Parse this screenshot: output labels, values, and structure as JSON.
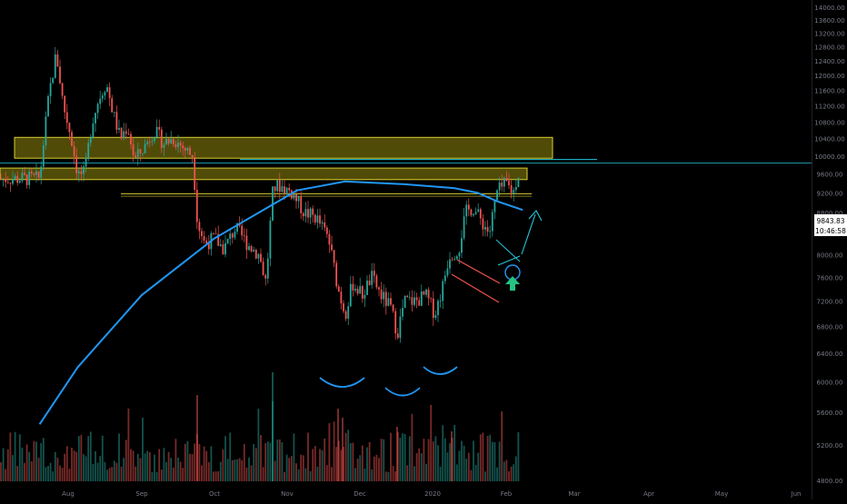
{
  "chart_data": {
    "type": "candlestick",
    "title": "",
    "xlabel": "",
    "ylabel": "",
    "x_ticks": [
      "Aug",
      "Sep",
      "Oct",
      "Nov",
      "Dec",
      "2020",
      "Feb",
      "Mar",
      "Apr",
      "May",
      "Jun"
    ],
    "y_ticks": [
      "4800.00",
      "5200.00",
      "5600.00",
      "6000.00",
      "6400.00",
      "6800.00",
      "7200.00",
      "7600.00",
      "8000.00",
      "8400.00",
      "8800.00",
      "9200.00",
      "9600.00",
      "10000.00",
      "10400.00",
      "10800.00",
      "11200.00",
      "11600.00",
      "12000.00",
      "12400.00",
      "12800.00",
      "13200.00",
      "13600.00",
      "14000.00"
    ],
    "ylim": [
      4600,
      14100
    ],
    "log_scale": true,
    "grid": false,
    "last_price": "9843.83",
    "countdown": "10:46:58",
    "price_series": {
      "name": "",
      "points": [
        [
          "Jul 20",
          9500
        ],
        [
          "Jul 24",
          11500
        ],
        [
          "Jul 27",
          12600
        ],
        [
          "Jul 30",
          11200
        ],
        [
          "Aug 2",
          10500
        ],
        [
          "Aug 5",
          9600
        ],
        [
          "Aug 8",
          9600
        ],
        [
          "Aug 11",
          10800
        ],
        [
          "Aug 14",
          11400
        ],
        [
          "Aug 17",
          11800
        ],
        [
          "Aug 20",
          11000
        ],
        [
          "Aug 23",
          10400
        ],
        [
          "Aug 26",
          10700
        ],
        [
          "Aug 29",
          9900
        ],
        [
          "Sep 2",
          10200
        ],
        [
          "Sep 6",
          10600
        ],
        [
          "Sep 10",
          10300
        ],
        [
          "Sep 14",
          10400
        ],
        [
          "Sep 18",
          10200
        ],
        [
          "Sep 22",
          10000
        ],
        [
          "Sep 24",
          8600
        ],
        [
          "Sep 27",
          8200
        ],
        [
          "Oct 1",
          8300
        ],
        [
          "Oct 5",
          8100
        ],
        [
          "Oct 10",
          8500
        ],
        [
          "Oct 15",
          8200
        ],
        [
          "Oct 20",
          8000
        ],
        [
          "Oct 23",
          7500
        ],
        [
          "Oct 26",
          9300
        ],
        [
          "Oct 29",
          9350
        ],
        [
          "Nov 3",
          9200
        ],
        [
          "Nov 8",
          8800
        ],
        [
          "Nov 13",
          8700
        ],
        [
          "Nov 18",
          8300
        ],
        [
          "Nov 22",
          7400
        ],
        [
          "Nov 25",
          7000
        ],
        [
          "Nov 28",
          7500
        ],
        [
          "Dec 2",
          7300
        ],
        [
          "Dec 6",
          7600
        ],
        [
          "Dec 10",
          7300
        ],
        [
          "Dec 14",
          7100
        ],
        [
          "Dec 17",
          6700
        ],
        [
          "Dec 20",
          7200
        ],
        [
          "Dec 25",
          7200
        ],
        [
          "Dec 29",
          7300
        ],
        [
          "Jan 2",
          7000
        ],
        [
          "Jan 5",
          7400
        ],
        [
          "Jan 8",
          8000
        ],
        [
          "Jan 12",
          8100
        ],
        [
          "Jan 15",
          8800
        ],
        [
          "Jan 18",
          8900
        ],
        [
          "Jan 22",
          8600
        ],
        [
          "Jan 25",
          8400
        ],
        [
          "Jan 28",
          9200
        ],
        [
          "Feb 1",
          9400
        ],
        [
          "Feb 4",
          9200
        ],
        [
          "Feb 6",
          9600
        ],
        [
          "Feb 8",
          9843
        ]
      ]
    },
    "moving_average": {
      "name": "",
      "color": "#2196f3",
      "points": [
        [
          "Jul 20",
          5450
        ],
        [
          "Aug 5",
          6200
        ],
        [
          "Sep 1",
          7300
        ],
        [
          "Oct 1",
          8300
        ],
        [
          "Oct 20",
          8800
        ],
        [
          "Nov 5",
          9250
        ],
        [
          "Nov 25",
          9440
        ],
        [
          "Dec 20",
          9380
        ],
        [
          "Jan 10",
          9300
        ],
        [
          "Jan 20",
          9200
        ],
        [
          "Jan 28",
          9030
        ],
        [
          "Feb 8",
          8850
        ]
      ]
    },
    "colors": {
      "background": "#000000",
      "up": "#26a69a",
      "down": "#ef5350",
      "zone_fill": "#b3a612",
      "zone_border": "#d9cd2f",
      "moving_average": "#2196f3",
      "trend_line": "#26c6da",
      "arrow_green": "#26c281",
      "axis_text": "#787b86",
      "price_label_bg": "#ffffff",
      "price_label_text": "#000000"
    }
  }
}
